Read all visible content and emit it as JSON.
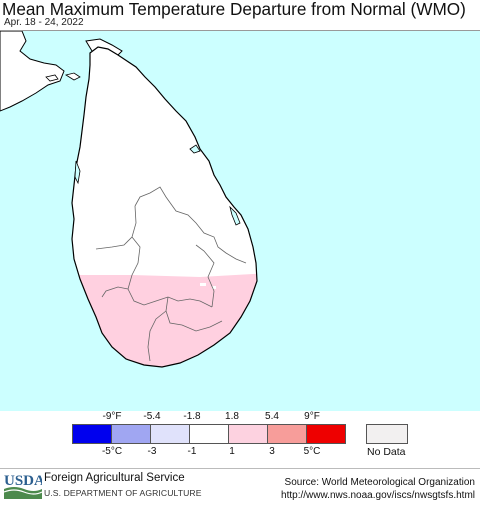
{
  "header": {
    "title": "Mean Maximum Temperature Departure from Normal (WMO)",
    "date_range": "Apr. 18 - 24, 2022"
  },
  "map": {
    "region_shown": "Sri Lanka",
    "colors": {
      "water": "#ccffff",
      "land_neutral": "#ffffff",
      "land_warm": "#ffd0e0",
      "border": "#000000",
      "district_lines": "#555555"
    }
  },
  "legend": {
    "fahrenheit_ticks": [
      "-9°F",
      "-5.4",
      "-1.8",
      "1.8",
      "5.4",
      "9°F"
    ],
    "celsius_ticks": [
      "-5°C",
      "-3",
      "-1",
      "1",
      "3",
      "5°C"
    ],
    "swatch_colors": [
      "#0000ee",
      "#a0a6f2",
      "#e0e2fb",
      "#ffffff",
      "#fdd2e0",
      "#f79d9a",
      "#ee0000"
    ],
    "no_data_label": "No Data",
    "no_data_color": "#f2f0f0"
  },
  "footer": {
    "logo_text": "USDA",
    "agency": "Foreign Agricultural Service",
    "department": "U.S. DEPARTMENT OF AGRICULTURE",
    "source": "Source: World Meteorological Organization",
    "url": "http://www.nws.noaa.gov/iscs/nwsgtsfs.html"
  }
}
